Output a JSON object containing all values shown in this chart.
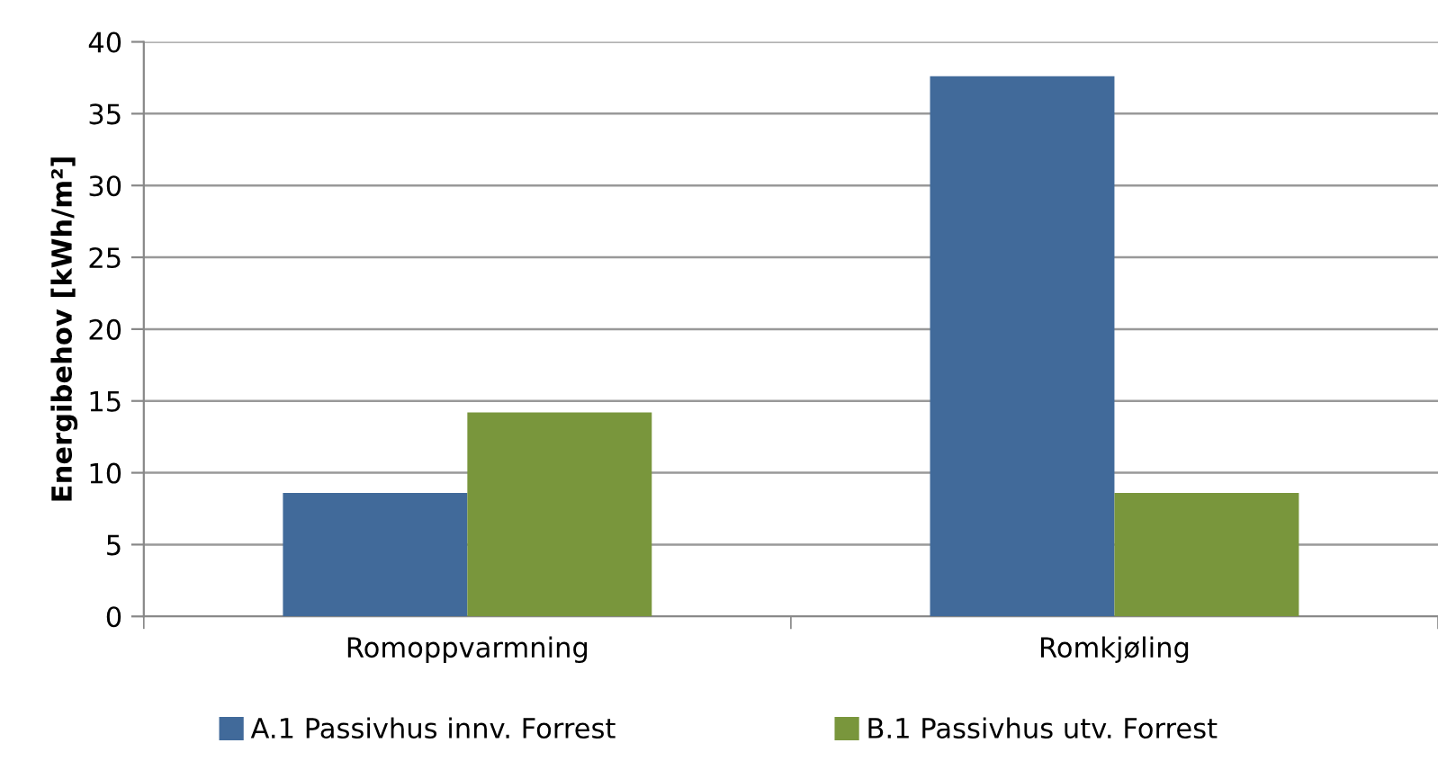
{
  "chart_data": {
    "type": "bar",
    "ylabel": "Energibehov [kWh/m²]",
    "categories": [
      "Romoppvarmning",
      "Romkjøling"
    ],
    "series": [
      {
        "name": "A.1 Passivhus innv. Forrest",
        "color": "#416a9a",
        "values": [
          8.6,
          37.6
        ]
      },
      {
        "name": "B.1 Passivhus utv. Forrest",
        "color": "#79963c",
        "values": [
          14.2,
          8.6
        ]
      }
    ],
    "ylim": [
      0,
      40
    ],
    "yticks": [
      0,
      5,
      10,
      15,
      20,
      25,
      30,
      35,
      40
    ],
    "grid": "y",
    "legend": "bottom"
  }
}
